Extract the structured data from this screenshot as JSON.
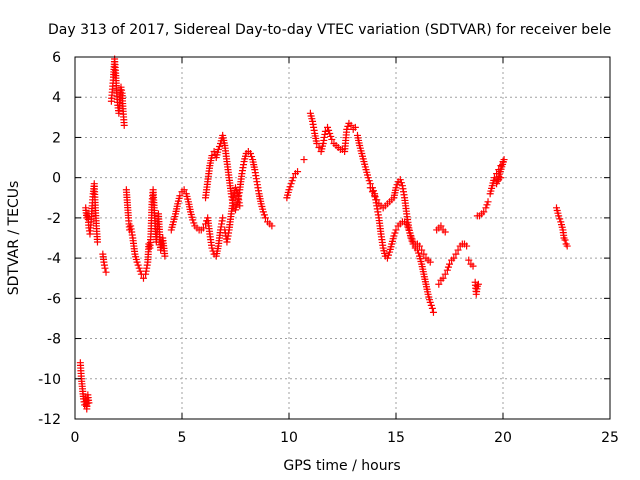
{
  "chart_data": {
    "type": "scatter",
    "title": "Day 313 of 2017, Sidereal Day-to-day VTEC variation (SDTVAR) for receiver bele",
    "xlabel": "GPS time / hours",
    "ylabel": "SDTVAR / TECUs",
    "xlim": [
      0,
      25
    ],
    "ylim": [
      -12,
      6
    ],
    "xticks": [
      0,
      5,
      10,
      15,
      20,
      25
    ],
    "yticks": [
      -12,
      -10,
      -8,
      -6,
      -4,
      -2,
      0,
      2,
      4,
      6
    ],
    "grid": true,
    "marker": "+",
    "color": "#ff0000",
    "series": [
      {
        "name": "SDTVAR",
        "segments": [
          [
            [
              0.25,
              -9.2
            ],
            [
              0.3,
              -10.0
            ],
            [
              0.35,
              -10.5
            ],
            [
              0.4,
              -11.0
            ],
            [
              0.45,
              -11.3
            ],
            [
              0.5,
              -11.0
            ],
            [
              0.55,
              -11.5
            ],
            [
              0.6,
              -10.8
            ],
            [
              0.65,
              -11.2
            ]
          ],
          [
            [
              0.5,
              -1.5
            ],
            [
              0.55,
              -2.0
            ],
            [
              0.6,
              -1.8
            ],
            [
              0.65,
              -2.5
            ],
            [
              0.7,
              -2.8
            ],
            [
              0.75,
              -2.2
            ],
            [
              0.8,
              -1.4
            ],
            [
              0.85,
              -0.8
            ],
            [
              0.9,
              -0.3
            ],
            [
              0.95,
              -1.5
            ],
            [
              1.0,
              -2.4
            ],
            [
              1.05,
              -3.2
            ]
          ],
          [
            [
              1.3,
              -3.8
            ],
            [
              1.35,
              -4.2
            ],
            [
              1.4,
              -4.5
            ],
            [
              1.45,
              -4.7
            ]
          ],
          [
            [
              1.7,
              3.8
            ],
            [
              1.75,
              4.4
            ],
            [
              1.8,
              5.0
            ],
            [
              1.85,
              5.9
            ],
            [
              1.9,
              5.2
            ],
            [
              1.95,
              4.2
            ],
            [
              2.0,
              3.6
            ],
            [
              2.05,
              3.2
            ],
            [
              2.1,
              4.0
            ],
            [
              2.15,
              4.5
            ],
            [
              2.2,
              4.2
            ],
            [
              2.25,
              3.3
            ],
            [
              2.3,
              2.6
            ]
          ],
          [
            [
              2.4,
              -0.6
            ],
            [
              2.5,
              -2.0
            ],
            [
              2.55,
              -2.6
            ],
            [
              2.6,
              -2.4
            ],
            [
              2.7,
              -3.0
            ],
            [
              2.8,
              -3.8
            ],
            [
              2.9,
              -4.2
            ],
            [
              3.0,
              -4.5
            ],
            [
              3.1,
              -4.8
            ],
            [
              3.2,
              -5.0
            ],
            [
              3.3,
              -4.8
            ],
            [
              3.4,
              -4.2
            ],
            [
              3.45,
              -3.3
            ]
          ],
          [
            [
              3.5,
              -3.5
            ],
            [
              3.55,
              -2.8
            ],
            [
              3.6,
              -1.2
            ],
            [
              3.65,
              -0.6
            ],
            [
              3.7,
              -1.5
            ],
            [
              3.75,
              -2.4
            ],
            [
              3.8,
              -3.2
            ],
            [
              3.9,
              -1.8
            ],
            [
              4.0,
              -3.6
            ],
            [
              4.1,
              -3.0
            ],
            [
              4.2,
              -3.9
            ]
          ],
          [
            [
              4.5,
              -2.6
            ],
            [
              4.6,
              -2.2
            ],
            [
              4.7,
              -1.8
            ],
            [
              4.8,
              -1.3
            ],
            [
              4.9,
              -0.9
            ],
            [
              5.0,
              -0.7
            ],
            [
              5.1,
              -0.6
            ],
            [
              5.2,
              -0.8
            ],
            [
              5.3,
              -1.2
            ],
            [
              5.4,
              -1.7
            ],
            [
              5.5,
              -2.1
            ],
            [
              5.6,
              -2.4
            ],
            [
              5.7,
              -2.5
            ],
            [
              5.8,
              -2.6
            ],
            [
              5.9,
              -2.6
            ],
            [
              6.0,
              -2.5
            ],
            [
              6.1,
              -2.3
            ],
            [
              6.2,
              -2.0
            ],
            [
              6.3,
              -2.8
            ],
            [
              6.4,
              -3.5
            ],
            [
              6.5,
              -3.8
            ],
            [
              6.6,
              -3.9
            ],
            [
              6.7,
              -3.4
            ],
            [
              6.8,
              -2.6
            ],
            [
              6.9,
              -2.0
            ]
          ],
          [
            [
              6.1,
              -1.0
            ],
            [
              6.2,
              -0.2
            ],
            [
              6.3,
              0.6
            ],
            [
              6.4,
              1.1
            ],
            [
              6.5,
              1.3
            ],
            [
              6.6,
              1.0
            ],
            [
              6.7,
              1.4
            ],
            [
              6.8,
              1.7
            ],
            [
              6.9,
              2.1
            ],
            [
              7.0,
              1.6
            ],
            [
              7.1,
              0.8
            ],
            [
              7.2,
              0.0
            ],
            [
              7.3,
              -0.8
            ],
            [
              7.4,
              -1.4
            ],
            [
              7.5,
              -1.6
            ],
            [
              7.6,
              -1.2
            ],
            [
              7.7,
              -0.6
            ],
            [
              7.8,
              0.2
            ],
            [
              7.9,
              0.8
            ],
            [
              8.0,
              1.2
            ],
            [
              8.1,
              1.3
            ],
            [
              8.2,
              1.2
            ],
            [
              8.3,
              0.9
            ],
            [
              8.4,
              0.4
            ],
            [
              8.5,
              -0.2
            ],
            [
              8.6,
              -0.8
            ],
            [
              8.7,
              -1.3
            ],
            [
              8.8,
              -1.7
            ],
            [
              8.9,
              -2.0
            ],
            [
              9.0,
              -2.2
            ],
            [
              9.1,
              -2.3
            ],
            [
              9.2,
              -2.4
            ]
          ],
          [
            [
              7.0,
              -2.6
            ],
            [
              7.1,
              -3.2
            ],
            [
              7.2,
              -2.6
            ],
            [
              7.3,
              -1.8
            ],
            [
              7.4,
              -1.0
            ],
            [
              7.5,
              -0.5
            ],
            [
              7.6,
              -0.8
            ],
            [
              7.7,
              -1.4
            ]
          ],
          [
            [
              9.9,
              -1.0
            ],
            [
              10.0,
              -0.6
            ],
            [
              10.1,
              -0.3
            ],
            [
              10.2,
              0.0
            ],
            [
              10.3,
              0.2
            ],
            [
              10.4,
              0.3
            ]
          ],
          [
            [
              10.7,
              0.9
            ]
          ],
          [
            [
              11.0,
              3.2
            ],
            [
              11.1,
              2.8
            ],
            [
              11.2,
              2.2
            ],
            [
              11.3,
              1.7
            ],
            [
              11.4,
              1.5
            ],
            [
              11.5,
              1.3
            ],
            [
              11.6,
              1.7
            ],
            [
              11.7,
              2.3
            ],
            [
              11.8,
              2.5
            ],
            [
              11.9,
              2.2
            ],
            [
              12.0,
              1.9
            ],
            [
              12.1,
              1.7
            ],
            [
              12.2,
              1.6
            ],
            [
              12.3,
              1.5
            ],
            [
              12.4,
              1.4
            ],
            [
              12.5,
              1.4
            ],
            [
              12.6,
              1.3
            ],
            [
              12.7,
              2.4
            ],
            [
              12.8,
              2.7
            ],
            [
              12.9,
              2.6
            ],
            [
              13.0,
              2.4
            ],
            [
              13.1,
              2.5
            ]
          ],
          [
            [
              13.2,
              2.1
            ],
            [
              13.3,
              1.6
            ],
            [
              13.4,
              1.2
            ],
            [
              13.5,
              0.8
            ],
            [
              13.6,
              0.4
            ],
            [
              13.7,
              0.0
            ],
            [
              13.8,
              -0.3
            ],
            [
              13.9,
              -0.5
            ],
            [
              14.0,
              -0.8
            ],
            [
              14.1,
              -1.4
            ],
            [
              14.2,
              -2.0
            ],
            [
              14.3,
              -2.8
            ],
            [
              14.4,
              -3.5
            ],
            [
              14.5,
              -3.9
            ],
            [
              14.6,
              -4.0
            ],
            [
              14.7,
              -3.7
            ],
            [
              14.8,
              -3.3
            ],
            [
              14.9,
              -2.9
            ],
            [
              15.0,
              -2.6
            ],
            [
              15.1,
              -2.4
            ],
            [
              15.2,
              -2.3
            ],
            [
              15.3,
              -2.2
            ],
            [
              15.4,
              -2.2
            ],
            [
              15.5,
              -2.3
            ],
            [
              15.6,
              -2.6
            ],
            [
              15.7,
              -2.9
            ],
            [
              15.8,
              -3.2
            ],
            [
              15.9,
              -3.4
            ],
            [
              16.0,
              -3.6
            ],
            [
              16.1,
              -3.9
            ],
            [
              16.2,
              -4.3
            ],
            [
              16.3,
              -4.8
            ],
            [
              16.4,
              -5.3
            ],
            [
              16.5,
              -5.8
            ],
            [
              16.6,
              -6.2
            ],
            [
              16.7,
              -6.5
            ],
            [
              16.75,
              -6.7
            ]
          ],
          [
            [
              13.8,
              -0.5
            ],
            [
              13.9,
              -0.7
            ],
            [
              14.0,
              -0.9
            ],
            [
              14.1,
              -1.1
            ],
            [
              14.2,
              -1.3
            ],
            [
              14.3,
              -1.4
            ],
            [
              14.4,
              -1.5
            ],
            [
              14.5,
              -1.4
            ],
            [
              14.6,
              -1.3
            ],
            [
              14.7,
              -1.2
            ],
            [
              14.8,
              -1.1
            ],
            [
              14.9,
              -1.0
            ],
            [
              15.0,
              -0.5
            ],
            [
              15.1,
              -0.2
            ],
            [
              15.2,
              -0.1
            ],
            [
              15.3,
              -0.4
            ],
            [
              15.4,
              -1.0
            ],
            [
              15.5,
              -1.8
            ],
            [
              15.6,
              -2.5
            ],
            [
              15.7,
              -3.0
            ],
            [
              15.8,
              -3.3
            ],
            [
              15.9,
              -3.5
            ],
            [
              16.0,
              -3.3
            ],
            [
              16.1,
              -3.4
            ],
            [
              16.2,
              -3.6
            ],
            [
              16.3,
              -3.8
            ],
            [
              16.4,
              -4.0
            ],
            [
              16.5,
              -4.1
            ],
            [
              16.6,
              -4.2
            ]
          ],
          [
            [
              16.9,
              -2.6
            ],
            [
              17.0,
              -2.5
            ],
            [
              17.1,
              -2.4
            ],
            [
              17.2,
              -2.6
            ],
            [
              17.3,
              -2.7
            ]
          ],
          [
            [
              17.0,
              -5.3
            ],
            [
              17.1,
              -5.1
            ],
            [
              17.2,
              -5.0
            ],
            [
              17.3,
              -4.8
            ],
            [
              17.4,
              -4.6
            ],
            [
              17.5,
              -4.3
            ],
            [
              17.6,
              -4.1
            ],
            [
              17.7,
              -4.0
            ],
            [
              17.8,
              -3.8
            ],
            [
              17.9,
              -3.6
            ],
            [
              18.0,
              -3.4
            ],
            [
              18.1,
              -3.3
            ],
            [
              18.2,
              -3.3
            ],
            [
              18.3,
              -3.4
            ]
          ],
          [
            [
              18.4,
              -4.1
            ],
            [
              18.5,
              -4.3
            ],
            [
              18.6,
              -4.4
            ]
          ],
          [
            [
              18.7,
              -5.2
            ],
            [
              18.75,
              -5.8
            ],
            [
              18.8,
              -5.4
            ],
            [
              18.85,
              -5.3
            ]
          ],
          [
            [
              18.8,
              -1.9
            ],
            [
              18.9,
              -1.9
            ],
            [
              19.0,
              -1.8
            ],
            [
              19.1,
              -1.7
            ],
            [
              19.2,
              -1.5
            ],
            [
              19.3,
              -1.2
            ]
          ],
          [
            [
              19.4,
              -0.8
            ],
            [
              19.5,
              -0.4
            ],
            [
              19.6,
              0.0
            ],
            [
              19.7,
              0.2
            ],
            [
              19.8,
              0.4
            ],
            [
              19.9,
              0.6
            ],
            [
              20.0,
              0.8
            ],
            [
              20.05,
              0.9
            ],
            [
              19.7,
              -0.3
            ],
            [
              19.8,
              -0.1
            ],
            [
              19.9,
              0.0
            ]
          ],
          [
            [
              22.5,
              -1.5
            ],
            [
              22.6,
              -1.9
            ],
            [
              22.7,
              -2.2
            ],
            [
              22.8,
              -2.6
            ],
            [
              22.85,
              -3.0
            ],
            [
              22.9,
              -3.1
            ],
            [
              22.95,
              -3.3
            ],
            [
              23.0,
              -3.4
            ]
          ]
        ]
      }
    ]
  }
}
